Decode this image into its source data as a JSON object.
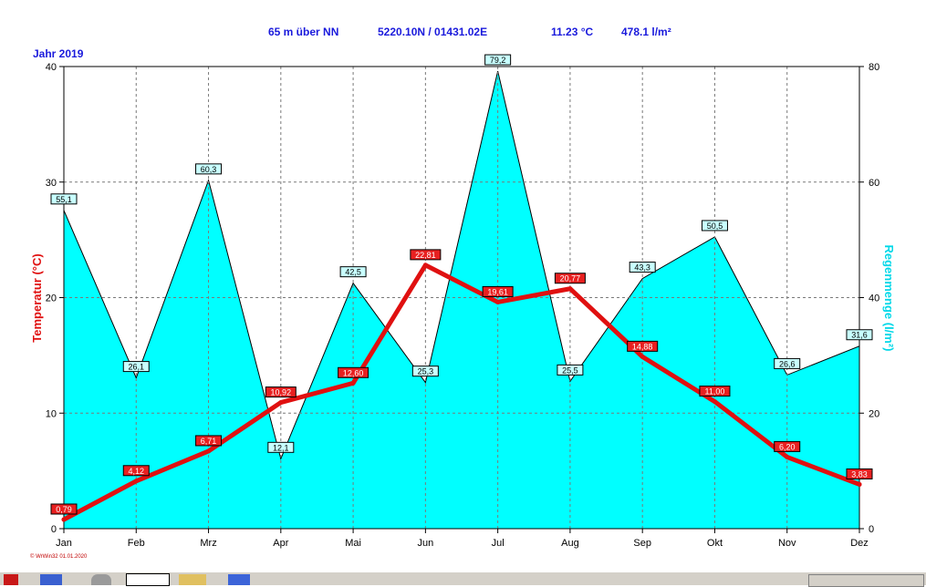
{
  "header": {
    "altitude": "65 m über NN",
    "coords": "5220.10N / 01431.02E",
    "avg_temp": "11.23 °C",
    "total_rain": "478.1 l/m²",
    "year_label": "Jahr 2019"
  },
  "credit": "© WrWin32  01.01.2020",
  "colors": {
    "temperature": "#e01010",
    "rain_fill": "#00ffff",
    "header": "#1a1adc",
    "rain_axis_label": "#00d8e8"
  },
  "chart_data": {
    "type": "line",
    "categories": [
      "Jan",
      "Feb",
      "Mrz",
      "Apr",
      "Mai",
      "Jun",
      "Jul",
      "Aug",
      "Sep",
      "Okt",
      "Nov",
      "Dez"
    ],
    "series": [
      {
        "name": "Temperatur (°C)",
        "axis": "left",
        "values": [
          0.79,
          4.12,
          6.71,
          10.92,
          12.6,
          22.81,
          19.61,
          20.77,
          14.88,
          11.0,
          6.2,
          3.83
        ],
        "labels": [
          "0,79",
          "4,12",
          "6,71",
          "10,92",
          "12,60",
          "22,81",
          "19,61",
          "20,77",
          "14,88",
          "11,00",
          "6,20",
          "3,83"
        ]
      },
      {
        "name": "Regenmenge (l/m²)",
        "axis": "right",
        "chart_type": "area",
        "values": [
          55.1,
          26.1,
          60.3,
          12.1,
          42.5,
          25.3,
          79.2,
          25.5,
          43.3,
          50.5,
          26.6,
          31.6
        ],
        "labels": [
          "55,1",
          "26,1",
          "60,3",
          "12,1",
          "42,5",
          "25,3",
          "79,2",
          "25,5",
          "43,3",
          "50,5",
          "26,6",
          "31,6"
        ]
      }
    ],
    "y_left": {
      "label": "Temperatur  (°C)",
      "lim": [
        0,
        40
      ],
      "ticks": [
        "0",
        "10",
        "20",
        "30",
        "40"
      ]
    },
    "y_right": {
      "label": "Regenmenge  (l/m²)",
      "lim": [
        0,
        80
      ],
      "ticks": [
        "0",
        "20",
        "40",
        "60",
        "80"
      ]
    },
    "grid": true
  }
}
